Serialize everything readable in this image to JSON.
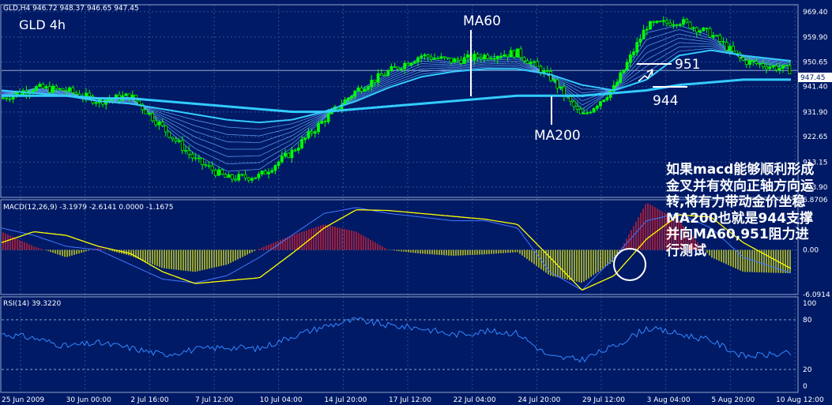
{
  "colors": {
    "background": "#001a66",
    "grid": "#2f4f8f",
    "border": "#8fa3c8",
    "text": "#ffffff",
    "bull_candle": "#00ff00",
    "ma_bright": "#33ccff",
    "ma_thin": "#66aaff",
    "macd_signal": "#ffff00",
    "macd_line": "#4477ff",
    "hist_pos": "#ff2020",
    "hist_neg": "#ffff00",
    "rsi_line": "#3388ff",
    "annotation": "#ffffff"
  },
  "price_panel": {
    "header": "GLD,H4  946.72 948.37 946.65 947.45",
    "title": "GLD  4h",
    "current_price": "947.45",
    "y_ticks": [
      "969.40",
      "959.90",
      "950.65",
      "941.40",
      "931.90",
      "922.65",
      "913.15",
      "903.90"
    ]
  },
  "macd_panel": {
    "header": "MACD(12,26,9) -3.1979 -2.6141 0.0000 -1.1675",
    "y_ticks": [
      "6.8706",
      "0.00",
      "-6.0914"
    ]
  },
  "rsi_panel": {
    "header": "RSI(14) 39.3220",
    "y_ticks": [
      "100",
      "80",
      "20",
      "0"
    ]
  },
  "x_labels": [
    "25 Jun 2009",
    "30 Jun 00:00",
    "2 Jul 16:00",
    "7 Jul 12:00",
    "10 Jul 04:00",
    "14 Jul 20:00",
    "17 Jul 12:00",
    "22 Jul 04:00",
    "24 Jul 20:00",
    "29 Jul 12:00",
    "3 Aug 04:00",
    "5 Aug 20:00",
    "10 Aug 12:00"
  ],
  "annotations": {
    "ma60_label": "MA60",
    "ma200_label": "MA200",
    "level_951": "951",
    "level_944": "944",
    "note": "如果macd能够顺利形成金叉并有效向正轴方向运转,将有力带动金价坐稳MA200也就是944支撑并向MA60,951阻力进行测试"
  },
  "chart_data": [
    {
      "type": "line",
      "title": "GLD 4h",
      "series_description": "price candles with moving averages",
      "x": [
        0,
        8,
        16,
        24,
        32,
        40,
        48,
        56,
        64,
        72,
        80,
        88,
        96,
        104,
        112,
        120,
        128,
        136,
        144,
        152,
        160,
        168,
        176,
        184,
        196
      ],
      "y_close": [
        937,
        941,
        940,
        936,
        938,
        926,
        914,
        907,
        908,
        917,
        929,
        940,
        947,
        953,
        951,
        953,
        954,
        945,
        930,
        941,
        964,
        966,
        961,
        951,
        947.45
      ],
      "series": [
        {
          "name": "MA60",
          "values": [
            940,
            939,
            938,
            936,
            935,
            933,
            931,
            929,
            928,
            929,
            932,
            936,
            941,
            945,
            947,
            948,
            948,
            946,
            942,
            940,
            944,
            953,
            955,
            953,
            951
          ]
        },
        {
          "name": "MA200",
          "values": [
            938,
            938,
            938,
            937,
            937,
            936,
            935,
            934,
            933,
            932,
            932,
            933,
            934,
            935,
            936,
            937,
            938,
            938,
            938,
            939,
            940,
            942,
            943,
            944,
            944
          ]
        }
      ],
      "ylim": [
        900,
        972
      ]
    },
    {
      "type": "bar",
      "title": "MACD(12,26,9)",
      "x": [
        0,
        8,
        16,
        24,
        32,
        40,
        48,
        56,
        64,
        72,
        80,
        88,
        96,
        104,
        112,
        120,
        128,
        136,
        144,
        152,
        160,
        168,
        176,
        184,
        196
      ],
      "series": [
        {
          "name": "histogram",
          "values": [
            2.5,
            0.5,
            -1.0,
            0.3,
            -0.8,
            -2.5,
            -3.0,
            -2.0,
            0.2,
            2.0,
            3.5,
            2.5,
            0.0,
            -0.5,
            -0.8,
            -0.6,
            -0.3,
            -3.5,
            -4.5,
            -1.5,
            6.5,
            4.0,
            -1.0,
            -3.0,
            -3.2
          ]
        },
        {
          "name": "signal",
          "values": [
            1.0,
            2.5,
            2.0,
            0.5,
            -0.5,
            -3.0,
            -4.6,
            -4.2,
            -3.8,
            -0.5,
            3.0,
            5.5,
            5.4,
            5.0,
            4.6,
            4.2,
            3.5,
            -1.0,
            -5.5,
            -3.5,
            1.5,
            4.8,
            4.5,
            1.0,
            -2.6
          ]
        },
        {
          "name": "macd",
          "values": [
            3.0,
            2.0,
            0.5,
            0.0,
            -2.0,
            -4.0,
            -4.5,
            -3.5,
            -1.0,
            2.0,
            5.0,
            5.8,
            5.0,
            4.5,
            4.0,
            4.0,
            3.0,
            -3.0,
            -5.5,
            -1.0,
            4.0,
            5.0,
            3.0,
            -1.0,
            -3.2
          ]
        }
      ],
      "ylim": [
        -6.0914,
        6.8706
      ]
    },
    {
      "type": "line",
      "title": "RSI(14)",
      "x": [
        0,
        8,
        16,
        24,
        32,
        40,
        48,
        56,
        64,
        72,
        80,
        88,
        96,
        104,
        112,
        120,
        128,
        136,
        144,
        152,
        160,
        168,
        176,
        184,
        196
      ],
      "series": [
        {
          "name": "RSI",
          "values": [
            63,
            58,
            48,
            52,
            46,
            38,
            44,
            47,
            45,
            60,
            72,
            80,
            73,
            70,
            62,
            66,
            64,
            35,
            32,
            48,
            70,
            63,
            55,
            36,
            39.322
          ]
        }
      ],
      "ylim": [
        0,
        100
      ]
    }
  ]
}
